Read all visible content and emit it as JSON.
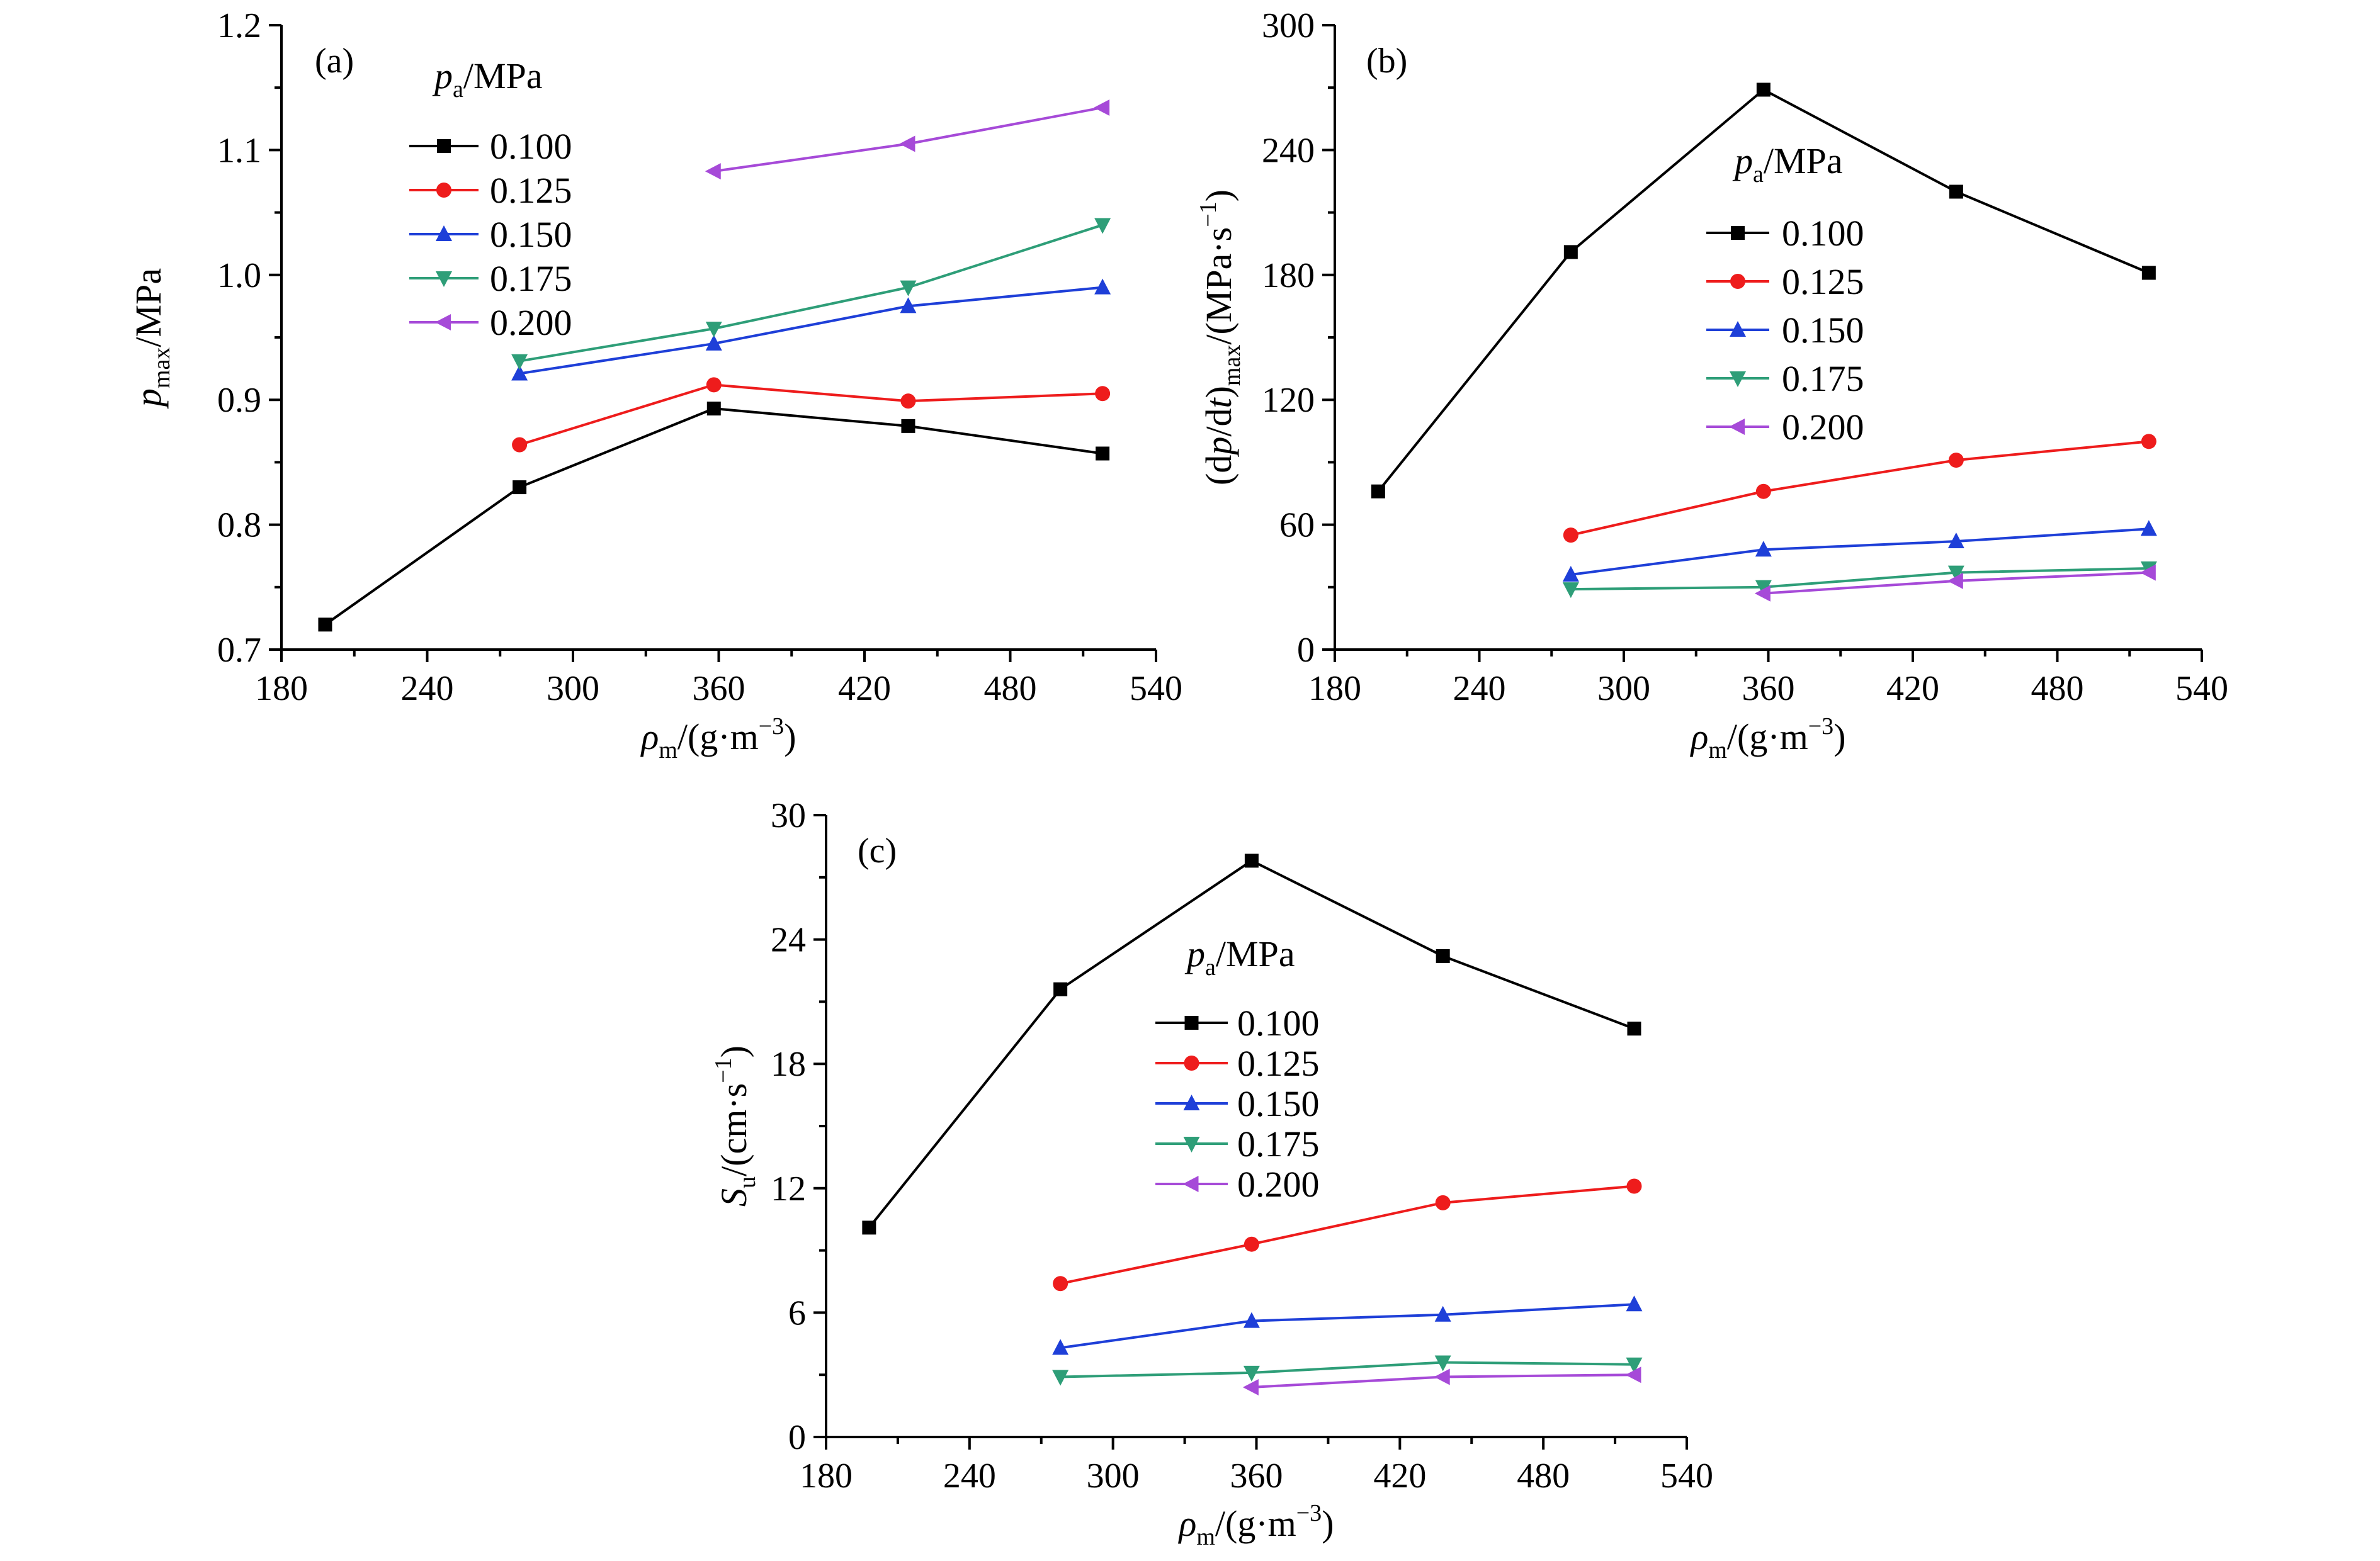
{
  "legend_title": {
    "base": "p",
    "sub": "a",
    "unit": "/MPa"
  },
  "series_meta": [
    {
      "name": "0.100",
      "color": "#000000",
      "marker": "square"
    },
    {
      "name": "0.125",
      "color": "#ee1c1c",
      "marker": "circle"
    },
    {
      "name": "0.150",
      "color": "#1e3fd8",
      "marker": "triangle-up"
    },
    {
      "name": "0.175",
      "color": "#2e9e78",
      "marker": "triangle-down"
    },
    {
      "name": "0.200",
      "color": "#a64ad8",
      "marker": "triangle-left"
    }
  ],
  "chart_data": [
    {
      "panel": "(a)",
      "type": "line",
      "xlabel": {
        "base": "ρ",
        "sub": "m",
        "unit": "/(g·m",
        "sup": "−3",
        "close": ")"
      },
      "ylabel": {
        "base": "p",
        "sub": "max",
        "unit": "/MPa"
      },
      "xlim": [
        180,
        540
      ],
      "ylim": [
        0.7,
        1.2
      ],
      "xticks": [
        180,
        240,
        300,
        360,
        420,
        480,
        540
      ],
      "yticks": [
        "0.7",
        "0.8",
        "0.9",
        "1.0",
        "1.1",
        "1.2"
      ],
      "series": [
        {
          "name": "0.100",
          "x": [
            198,
            278,
            358,
            438,
            518
          ],
          "y": [
            0.72,
            0.83,
            0.893,
            0.879,
            0.857
          ]
        },
        {
          "name": "0.125",
          "x": [
            278,
            358,
            438,
            518
          ],
          "y": [
            0.864,
            0.912,
            0.899,
            0.905
          ]
        },
        {
          "name": "0.150",
          "x": [
            278,
            358,
            438,
            518
          ],
          "y": [
            0.921,
            0.945,
            0.975,
            0.99
          ]
        },
        {
          "name": "0.175",
          "x": [
            278,
            358,
            438,
            518
          ],
          "y": [
            0.931,
            0.957,
            0.99,
            1.04
          ]
        },
        {
          "name": "0.200",
          "x": [
            358,
            438,
            518
          ],
          "y": [
            1.083,
            1.105,
            1.134
          ]
        }
      ]
    },
    {
      "panel": "(b)",
      "type": "line",
      "xlabel": {
        "base": "ρ",
        "sub": "m",
        "unit": "/(g·m",
        "sup": "−3",
        "close": ")"
      },
      "ylabel": {
        "text": "(dp/dt)",
        "sub": "max",
        "unit": "/(MPa·s",
        "sup": "−1",
        "close": ")"
      },
      "xlim": [
        180,
        540
      ],
      "ylim": [
        0,
        300
      ],
      "xticks": [
        180,
        240,
        300,
        360,
        420,
        480,
        540
      ],
      "yticks": [
        "0",
        "60",
        "120",
        "180",
        "240",
        "300"
      ],
      "series": [
        {
          "name": "0.100",
          "x": [
            198,
            278,
            358,
            438,
            518
          ],
          "y": [
            76,
            191,
            269,
            220,
            181
          ]
        },
        {
          "name": "0.125",
          "x": [
            278,
            358,
            438,
            518
          ],
          "y": [
            55,
            76,
            91,
            100
          ]
        },
        {
          "name": "0.150",
          "x": [
            278,
            358,
            438,
            518
          ],
          "y": [
            36,
            48,
            52,
            58
          ]
        },
        {
          "name": "0.175",
          "x": [
            278,
            358,
            438,
            518
          ],
          "y": [
            29,
            30,
            37,
            39
          ]
        },
        {
          "name": "0.200",
          "x": [
            358,
            438,
            518
          ],
          "y": [
            27,
            33,
            37
          ]
        }
      ]
    },
    {
      "panel": "(c)",
      "type": "line",
      "xlabel": {
        "base": "ρ",
        "sub": "m",
        "unit": "/(g·m",
        "sup": "−3",
        "close": ")"
      },
      "ylabel": {
        "base": "S",
        "sub": "u",
        "unit": "/(cm·s",
        "sup": "−1",
        "close": ")"
      },
      "xlim": [
        180,
        540
      ],
      "ylim": [
        0,
        30
      ],
      "xticks": [
        180,
        240,
        300,
        360,
        420,
        480,
        540
      ],
      "yticks": [
        "0",
        "6",
        "12",
        "18",
        "24",
        "30"
      ],
      "series": [
        {
          "name": "0.100",
          "x": [
            198,
            278,
            358,
            438,
            518
          ],
          "y": [
            10.1,
            21.6,
            27.8,
            23.2,
            19.7
          ]
        },
        {
          "name": "0.125",
          "x": [
            278,
            358,
            438,
            518
          ],
          "y": [
            7.4,
            9.3,
            11.3,
            12.1
          ]
        },
        {
          "name": "0.150",
          "x": [
            278,
            358,
            438,
            518
          ],
          "y": [
            4.3,
            5.6,
            5.9,
            6.4
          ]
        },
        {
          "name": "0.175",
          "x": [
            278,
            358,
            438,
            518
          ],
          "y": [
            2.9,
            3.1,
            3.6,
            3.5
          ]
        },
        {
          "name": "0.200",
          "x": [
            358,
            438,
            518
          ],
          "y": [
            2.4,
            2.9,
            3.0
          ]
        }
      ]
    }
  ]
}
